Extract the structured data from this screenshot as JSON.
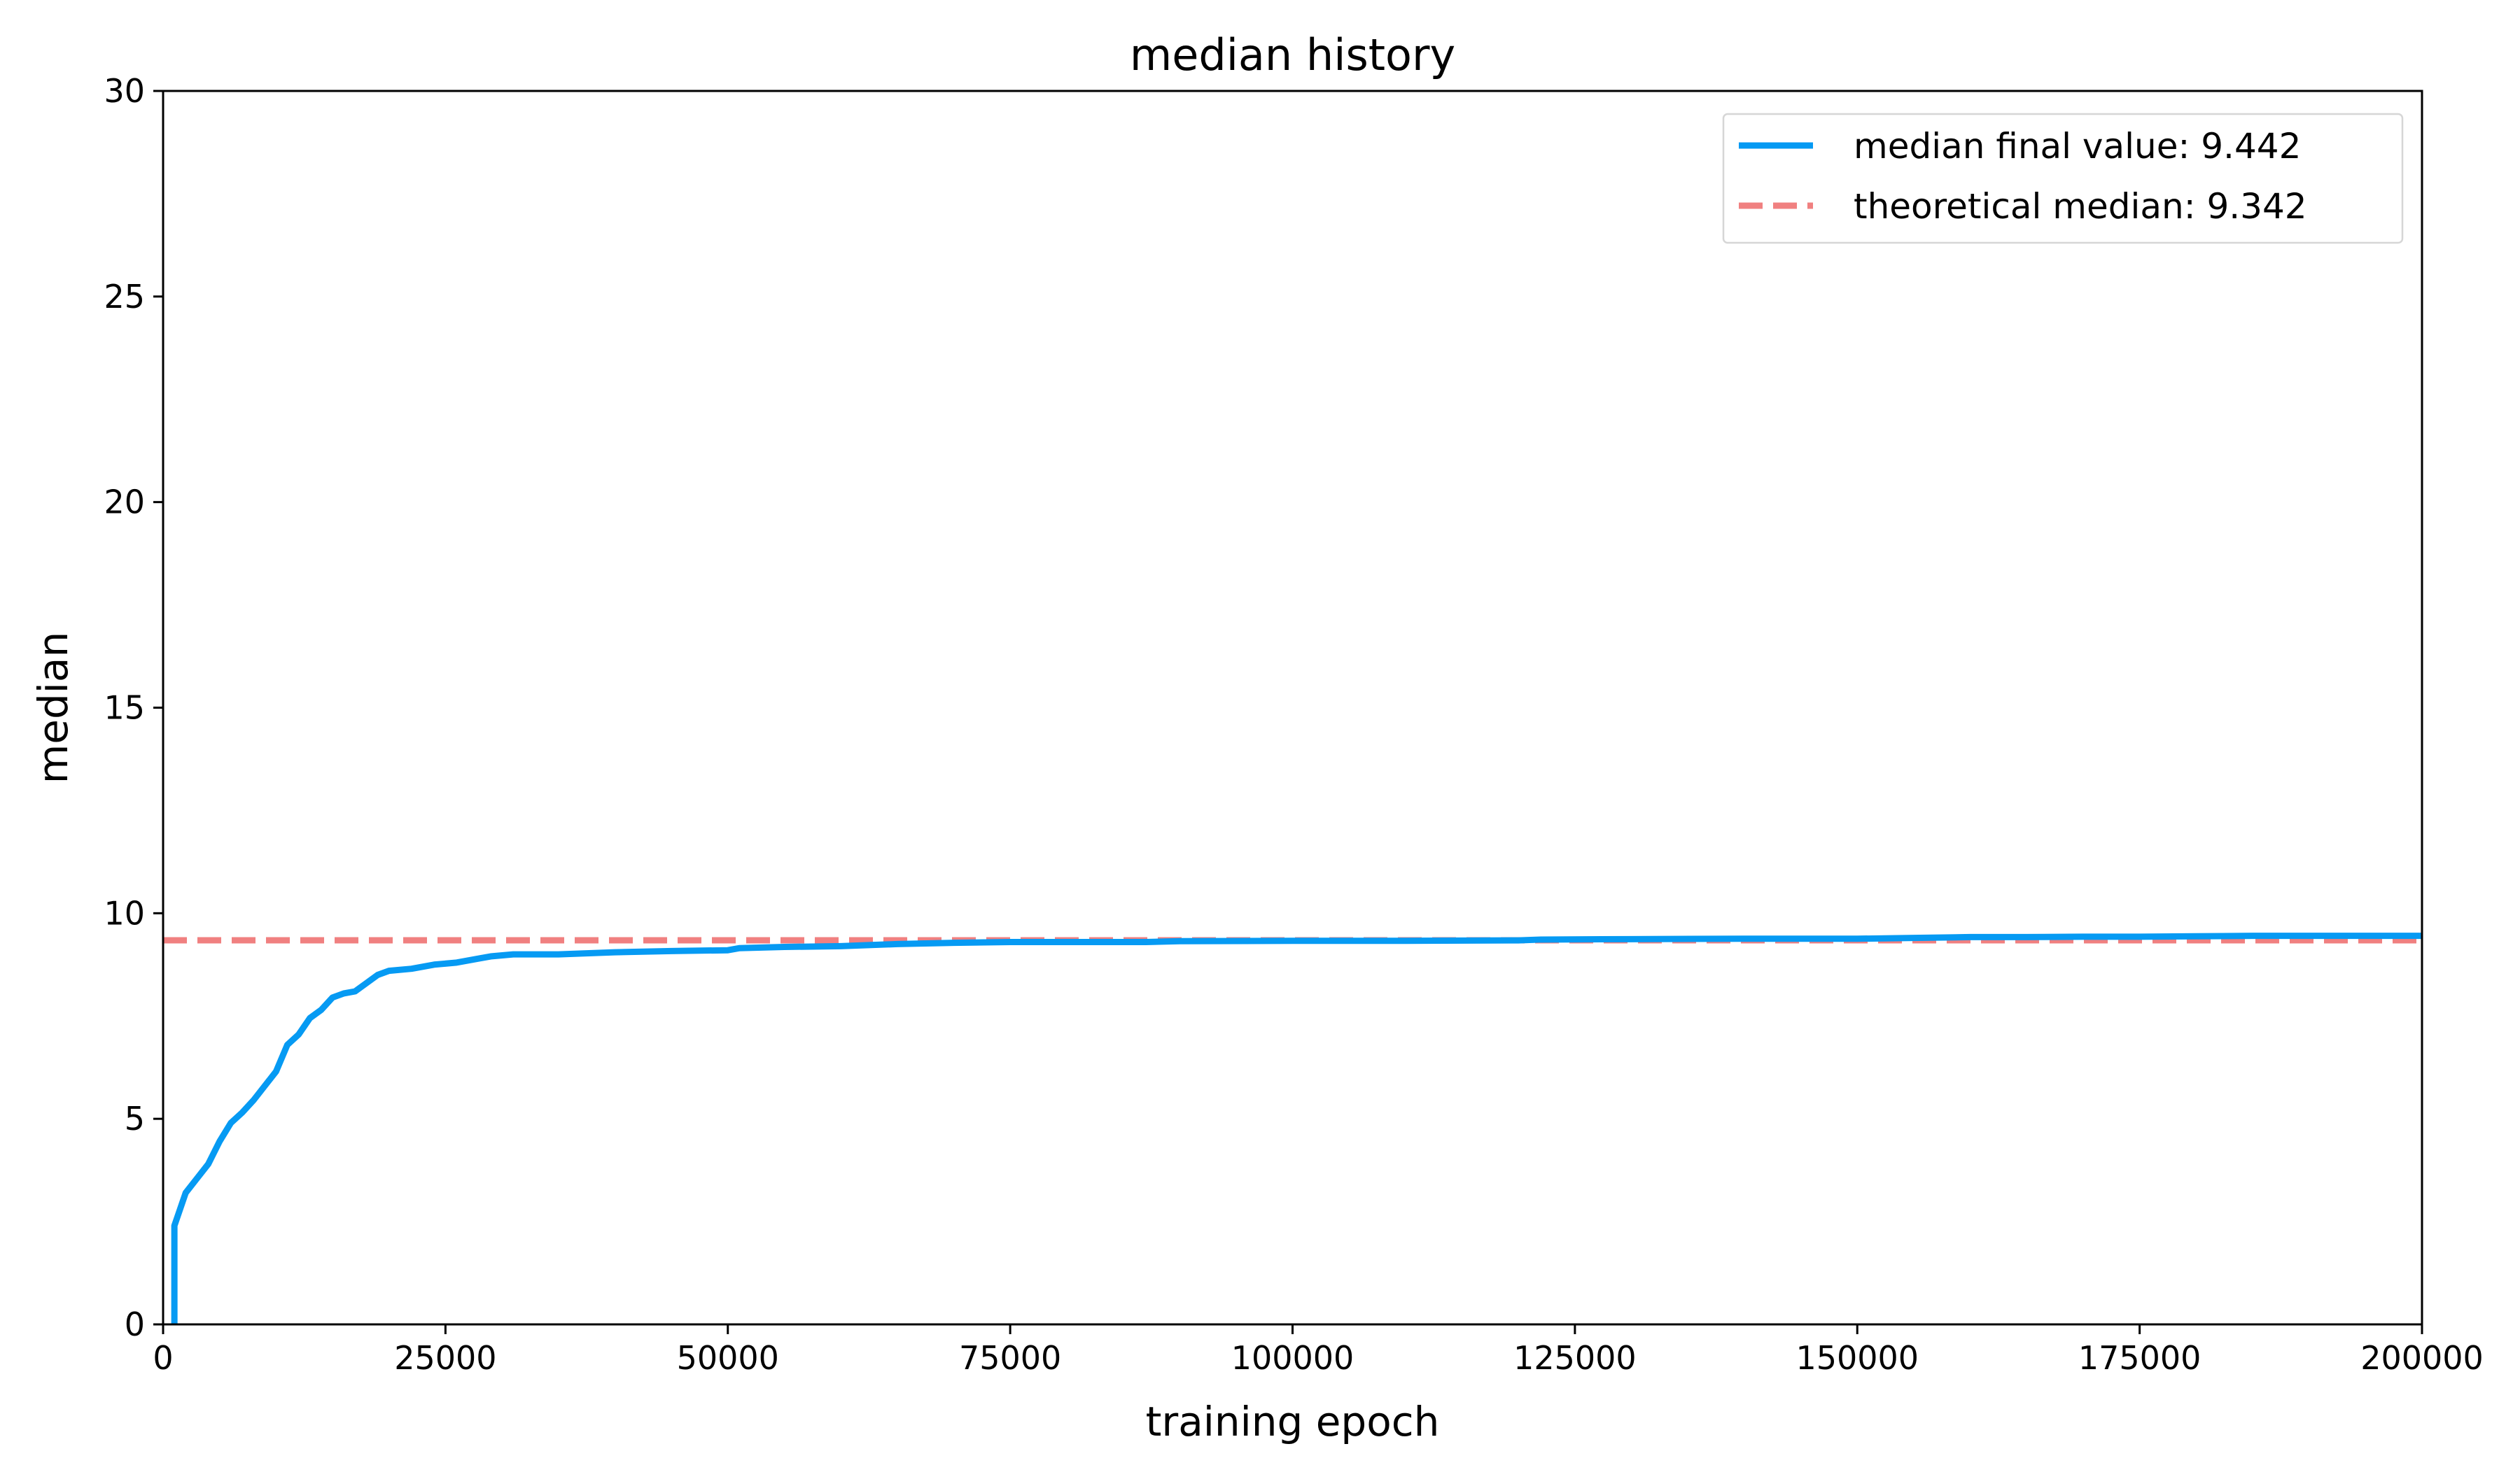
{
  "chart_data": {
    "type": "line",
    "title": "median history",
    "xlabel": "training epoch",
    "ylabel": "median",
    "xlim": [
      0,
      200000
    ],
    "ylim": [
      0,
      30
    ],
    "x_ticks": [
      0,
      25000,
      50000,
      75000,
      100000,
      125000,
      150000,
      175000,
      200000
    ],
    "x_tick_labels": [
      "0",
      "25000",
      "50000",
      "75000",
      "100000",
      "125000",
      "150000",
      "175000",
      "200000"
    ],
    "y_ticks": [
      0,
      5,
      10,
      15,
      20,
      25,
      30
    ],
    "y_tick_labels": [
      "0",
      "5",
      "10",
      "15",
      "20",
      "25",
      "30"
    ],
    "grid": false,
    "legend_position": "top-right",
    "series": [
      {
        "name": "median final value: 9.442",
        "color": "#069af3",
        "style": "solid",
        "x": [
          1000,
          1000,
          2000,
          3000,
          4000,
          5000,
          6000,
          7000,
          8000,
          9000,
          10000,
          11000,
          12000,
          13000,
          14000,
          15000,
          16000,
          17000,
          18000,
          19000,
          20000,
          22000,
          24000,
          26000,
          28000,
          29000,
          31000,
          35000,
          40000,
          45000,
          50000,
          51000,
          55000,
          60000,
          65000,
          70000,
          75000,
          80000,
          85000,
          87000,
          90000,
          100000,
          110000,
          120000,
          122000,
          130000,
          140000,
          150000,
          155000,
          160000,
          165000,
          170000,
          175000,
          180000,
          185000,
          190000,
          195000,
          200000
        ],
        "y": [
          0,
          2.4,
          3.2,
          3.55,
          3.9,
          4.45,
          4.9,
          5.15,
          5.45,
          5.8,
          6.15,
          6.8,
          7.05,
          7.45,
          7.65,
          7.95,
          8.05,
          8.1,
          8.3,
          8.5,
          8.6,
          8.65,
          8.75,
          8.8,
          8.9,
          8.95,
          9.0,
          9.0,
          9.05,
          9.08,
          9.1,
          9.15,
          9.18,
          9.2,
          9.25,
          9.28,
          9.3,
          9.3,
          9.3,
          9.3,
          9.32,
          9.33,
          9.33,
          9.34,
          9.36,
          9.37,
          9.38,
          9.38,
          9.4,
          9.42,
          9.42,
          9.43,
          9.43,
          9.44,
          9.45,
          9.45,
          9.45,
          9.45
        ]
      },
      {
        "name": "theoretical median: 9.342",
        "color": "#f08080",
        "style": "dashed",
        "x": [
          0,
          200000
        ],
        "y": [
          9.342,
          9.342
        ]
      }
    ]
  }
}
